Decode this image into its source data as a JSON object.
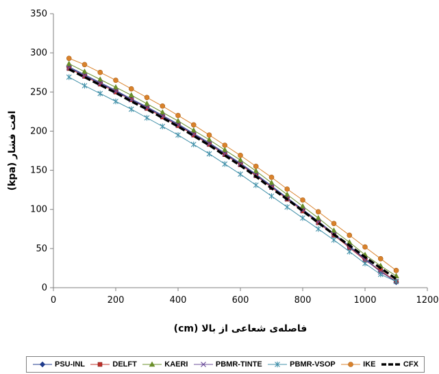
{
  "chart_data": {
    "type": "line",
    "title": "",
    "xlabel": "فاصله‌ی شعاعی از بالا (cm)",
    "ylabel": "افت فشار (kpa)",
    "xlim": [
      0,
      1200
    ],
    "ylim": [
      0,
      350
    ],
    "xticks": [
      0,
      200,
      400,
      600,
      800,
      1000,
      1200
    ],
    "yticks": [
      0,
      50,
      100,
      150,
      200,
      250,
      300,
      350
    ],
    "grid": false,
    "legend_position": "bottom",
    "x": [
      50,
      100,
      150,
      200,
      250,
      300,
      350,
      400,
      450,
      500,
      550,
      600,
      650,
      700,
      750,
      800,
      850,
      900,
      950,
      1000,
      1050,
      1100
    ],
    "series": [
      {
        "name": "PSU-INL",
        "color": "#1f3b8c",
        "marker": "diamond",
        "values": [
          282,
          272,
          262,
          252,
          241,
          231,
          220,
          209,
          197,
          185,
          172,
          159,
          145,
          130,
          115,
          100,
          85,
          69,
          53,
          37,
          21,
          7
        ]
      },
      {
        "name": "DELFT",
        "color": "#c0302a",
        "marker": "square",
        "values": [
          280,
          270,
          260,
          250,
          240,
          229,
          218,
          207,
          195,
          183,
          170,
          157,
          143,
          128,
          113,
          98,
          83,
          67,
          51,
          35,
          22,
          8
        ]
      },
      {
        "name": "KAERI",
        "color": "#6a8f2a",
        "marker": "triangle",
        "values": [
          286,
          276,
          266,
          256,
          246,
          235,
          224,
          213,
          201,
          189,
          176,
          163,
          149,
          134,
          119,
          104,
          89,
          73,
          58,
          42,
          28,
          15
        ]
      },
      {
        "name": "PBMR-TINTE",
        "color": "#6b4c9a",
        "marker": "x",
        "values": [
          281,
          271,
          261,
          251,
          240,
          230,
          219,
          208,
          196,
          184,
          171,
          158,
          144,
          129,
          114,
          99,
          84,
          68,
          52,
          36,
          20,
          8
        ]
      },
      {
        "name": "PBMR-VSOP",
        "color": "#3f8fa8",
        "marker": "star",
        "values": [
          269,
          258,
          248,
          238,
          228,
          217,
          206,
          195,
          183,
          171,
          158,
          145,
          131,
          117,
          103,
          89,
          75,
          61,
          46,
          31,
          17,
          8
        ]
      },
      {
        "name": "IKE",
        "color": "#d9822b",
        "marker": "circle",
        "values": [
          293,
          285,
          275,
          265,
          254,
          243,
          232,
          220,
          208,
          195,
          182,
          169,
          155,
          141,
          126,
          112,
          97,
          82,
          67,
          52,
          37,
          22
        ]
      },
      {
        "name": "CFX",
        "color": "#000000",
        "marker": "dash",
        "values": [
          279,
          269,
          259,
          249,
          238,
          228,
          217,
          206,
          194,
          182,
          169,
          156,
          142,
          127,
          113,
          98,
          83,
          68,
          54,
          39,
          25,
          11
        ]
      }
    ]
  }
}
